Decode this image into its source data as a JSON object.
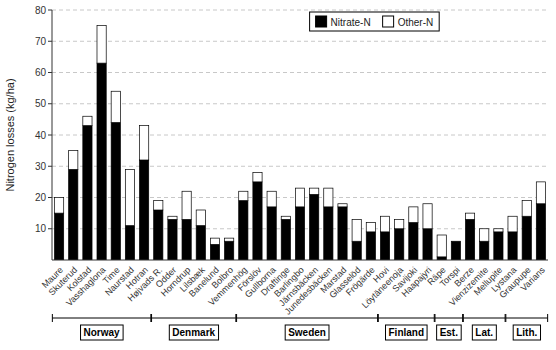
{
  "chart_data": {
    "type": "bar",
    "stacked": true,
    "y_label": "Nitrogen losses (kg/ha)",
    "categories": [
      "Maure",
      "Skuterud",
      "Kolstad",
      "Vasshaglona",
      "Time",
      "Naurstad",
      "Hotran",
      "Højvads R.",
      "Odder",
      "Horndrup",
      "Lilsbæk",
      "Banelund",
      "Bolbro",
      "Vemmenhög",
      "Förslöv",
      "Gullborna",
      "Draftinge",
      "Barlingbo",
      "Järnsbäcken",
      "Junedesbäcken",
      "Marstad",
      "Glasselöd",
      "Frögärde",
      "Hovi",
      "Löytäneenoja",
      "Savijoki",
      "Haapajyri",
      "Räpe",
      "Torspi",
      "Berze",
      "Vienzizemite",
      "Mellupite",
      "Lystana",
      "Graupupe",
      "Varians"
    ],
    "series": [
      {
        "name": "Nitrate-N",
        "color": "#000000",
        "values": [
          15,
          29,
          43,
          63,
          44,
          11,
          32,
          16,
          13,
          13,
          11,
          5,
          6,
          19,
          25,
          17,
          13,
          17,
          21,
          17,
          17,
          6,
          9,
          9,
          10,
          12,
          10,
          1,
          6,
          13,
          6,
          9,
          9,
          14,
          18
        ]
      },
      {
        "name": "Other-N",
        "color": "#ffffff",
        "values": [
          5,
          6,
          3,
          12,
          10,
          18,
          11,
          3,
          1,
          9,
          5,
          2,
          1,
          3,
          3,
          5,
          1,
          6,
          2,
          6,
          1,
          7,
          3,
          5,
          3,
          5,
          8,
          7,
          0,
          2,
          4,
          1,
          5,
          5,
          7
        ]
      }
    ],
    "annotations": [
      {
        "text": "Norway",
        "first": "Maure",
        "last": "Hotran"
      },
      {
        "text": "Denmark",
        "first": "Højvads R.",
        "last": "Bolbro"
      },
      {
        "text": "Sweden",
        "first": "Vemmenhög",
        "last": "Frögärde"
      },
      {
        "text": "Finland",
        "first": "Hovi",
        "last": "Haapajyri"
      },
      {
        "text": "Est.",
        "first": "Räpe",
        "last": "Torspi"
      },
      {
        "text": "Lat.",
        "first": "Berze",
        "last": "Mellupite"
      },
      {
        "text": "Lith.",
        "first": "Lystana",
        "last": "Varians"
      }
    ],
    "ylim": [
      0,
      80
    ],
    "yticks": [
      10,
      20,
      30,
      40,
      50,
      60,
      70,
      80
    ],
    "grid": true,
    "legend": "top"
  }
}
